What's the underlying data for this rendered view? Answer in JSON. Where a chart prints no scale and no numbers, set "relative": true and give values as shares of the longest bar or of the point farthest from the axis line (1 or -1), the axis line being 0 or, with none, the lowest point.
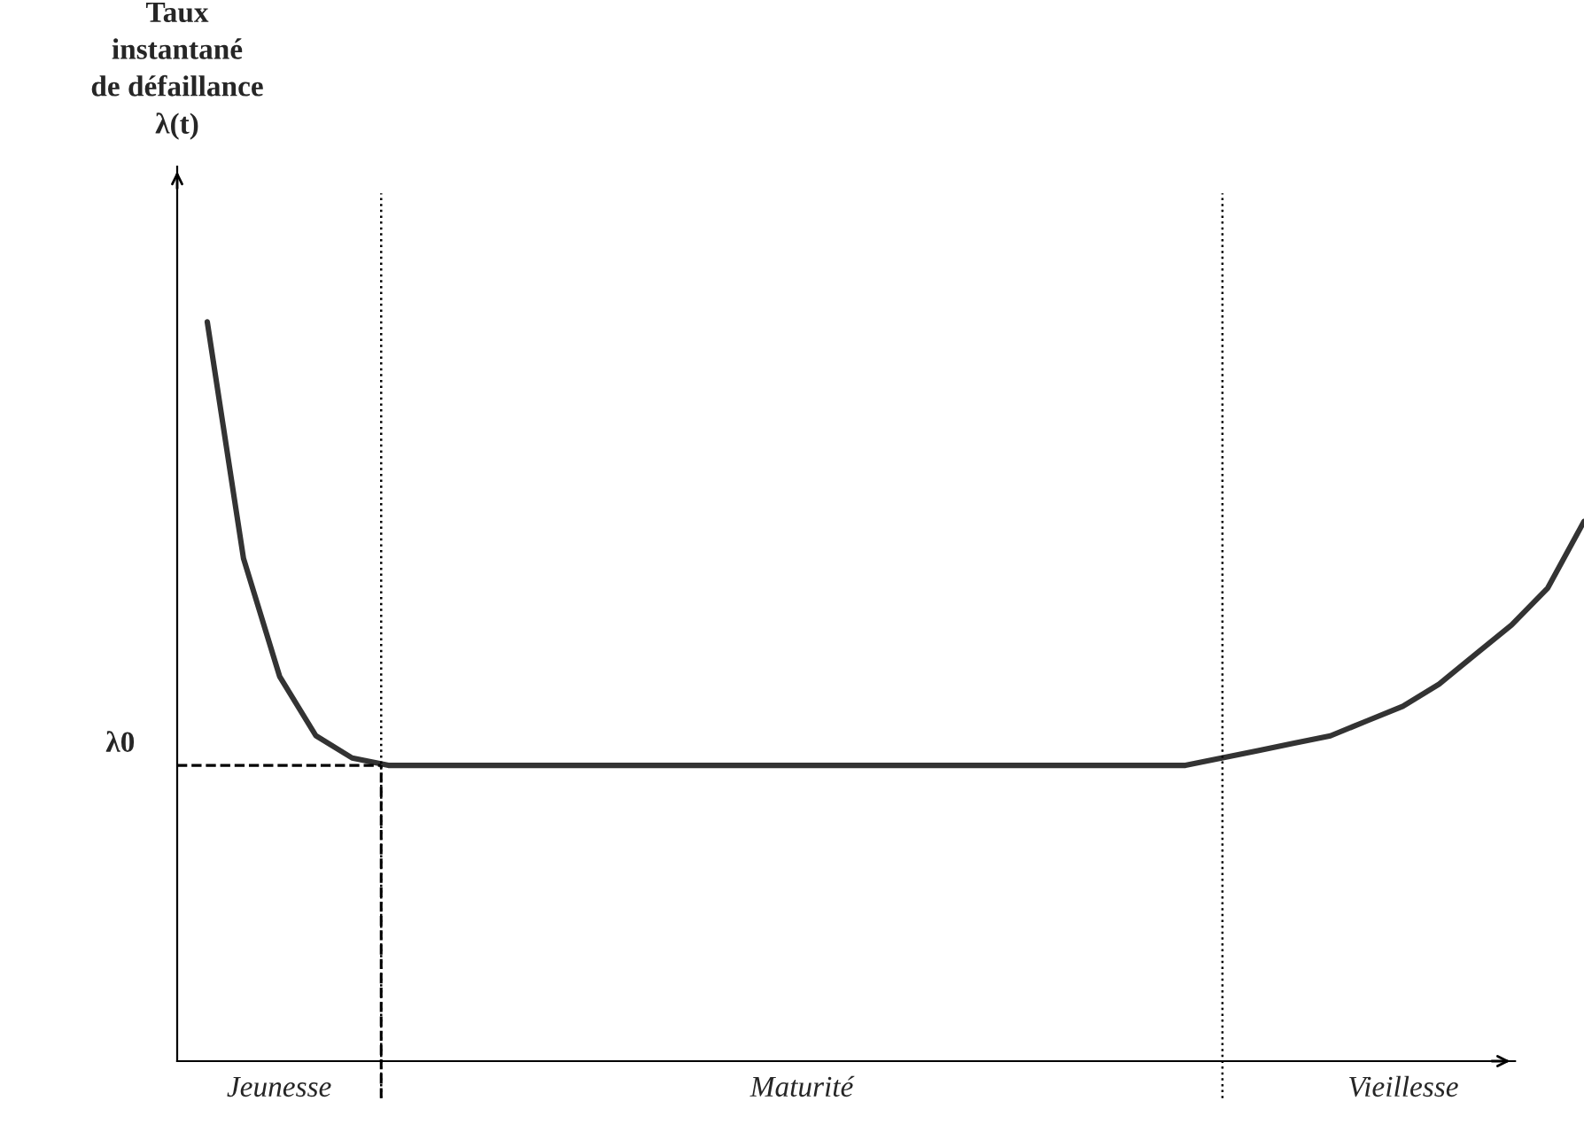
{
  "chart_data": {
    "type": "line",
    "relative": true,
    "categories": [
      null,
      null,
      null,
      null,
      null,
      null,
      null,
      null,
      null,
      null,
      null,
      null,
      null,
      null,
      null,
      null,
      null,
      null,
      null,
      null,
      null,
      null,
      null,
      null,
      null,
      null,
      null,
      null,
      null,
      null,
      null,
      null,
      null,
      null,
      null,
      null,
      null,
      null,
      null
    ],
    "series": [
      {
        "color": "#333333",
        "values": [
          1.0,
          0.68,
          0.52,
          0.44,
          0.41,
          0.4,
          0.4,
          0.4,
          0.4,
          0.4,
          0.4,
          0.4,
          0.4,
          0.4,
          0.4,
          0.4,
          0.4,
          0.4,
          0.4,
          0.4,
          0.4,
          0.4,
          0.4,
          0.4,
          0.4,
          0.4,
          0.4,
          0.4,
          0.41,
          0.42,
          0.43,
          0.44,
          0.46,
          0.48,
          0.51,
          0.55,
          0.59,
          0.64,
          0.73
        ]
      }
    ],
    "marker": "none",
    "line_style": "solid",
    "ref_lines": [
      {
        "axis": "y",
        "value": 0.4,
        "label": "λ0",
        "line_style": "dashed"
      }
    ],
    "annotations": [
      "Taux\ninstantané\nde défaillance\nλ(t)",
      "Jeunesse",
      "Maturité",
      "Vieillesse"
    ]
  }
}
